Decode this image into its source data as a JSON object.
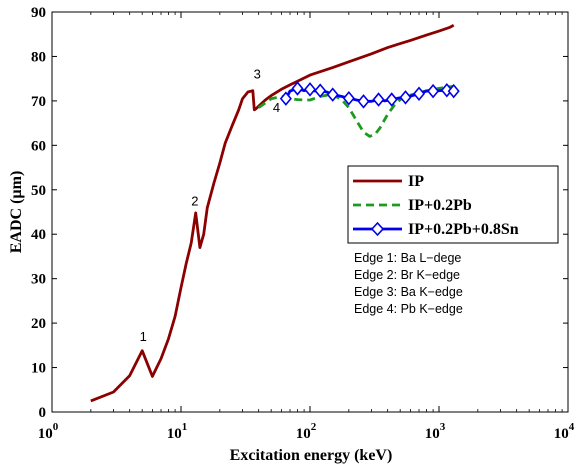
{
  "chart_data": {
    "type": "line",
    "xlabel": "Excitation energy (keV)",
    "ylabel": "EADC (µm)",
    "xscale": "log",
    "xlim": [
      1,
      10000
    ],
    "ylim": [
      0,
      90
    ],
    "x_ticks": [
      1,
      10,
      100,
      1000,
      10000
    ],
    "x_tick_labels": [
      {
        "base": "10",
        "exp": "0"
      },
      {
        "base": "10",
        "exp": "1"
      },
      {
        "base": "10",
        "exp": "2"
      },
      {
        "base": "10",
        "exp": "3"
      },
      {
        "base": "10",
        "exp": "4"
      }
    ],
    "y_ticks": [
      0,
      10,
      20,
      30,
      40,
      50,
      60,
      70,
      80,
      90
    ],
    "y_tick_labels": [
      "0",
      "10",
      "20",
      "30",
      "40",
      "50",
      "60",
      "70",
      "80",
      "90"
    ],
    "grid": false,
    "legend_placement": "center-right",
    "series": [
      {
        "name": "IP",
        "color": "#8b0000",
        "style": "solid",
        "marker": "none",
        "x": [
          2,
          3,
          4,
          5,
          6,
          7,
          8,
          9,
          10,
          11,
          12,
          13,
          14,
          15,
          16,
          18,
          20,
          22,
          25,
          28,
          30,
          33,
          36,
          37,
          38,
          40,
          45,
          50,
          60,
          70,
          80,
          100,
          150,
          200,
          300,
          400,
          500,
          600,
          800,
          1000,
          1200,
          1300
        ],
        "y": [
          2.5,
          4.5,
          8.2,
          13.8,
          8.0,
          12.0,
          16.5,
          21.5,
          28.0,
          33.5,
          38.0,
          44.8,
          37.0,
          40.0,
          46.0,
          51.5,
          56.0,
          60.5,
          64.5,
          68.0,
          70.5,
          72.0,
          72.3,
          68.0,
          68.2,
          68.8,
          70.2,
          71.2,
          72.6,
          73.6,
          74.4,
          75.8,
          77.5,
          78.8,
          80.6,
          82.0,
          82.9,
          83.6,
          84.8,
          85.7,
          86.5,
          87.0
        ]
      },
      {
        "name": "IP+0.2Pb",
        "color": "#1e9a1e",
        "style": "dashed",
        "marker": "none",
        "x": [
          40,
          50,
          60,
          70,
          80,
          90,
          100,
          120,
          150,
          180,
          200,
          230,
          260,
          290,
          320,
          350,
          400,
          450,
          500,
          600,
          700,
          800,
          1000,
          1300
        ],
        "y": [
          68.5,
          70.5,
          71.0,
          70.5,
          70.3,
          70.2,
          70.2,
          71.0,
          71.5,
          70.0,
          68.5,
          65.5,
          63.0,
          62.0,
          62.5,
          64.0,
          67.0,
          69.0,
          70.3,
          71.3,
          71.8,
          72.3,
          72.8,
          73.3
        ]
      },
      {
        "name": "IP+0.2Pb+0.8Sn",
        "color": "#0000ee",
        "style": "solid",
        "marker": "diamond",
        "x": [
          65,
          70,
          80,
          90,
          100,
          110,
          120,
          135,
          150,
          170,
          200,
          230,
          260,
          300,
          340,
          380,
          430,
          480,
          550,
          620,
          700,
          800,
          900,
          1000,
          1150,
          1300
        ],
        "y": [
          70.5,
          72.2,
          72.8,
          72.3,
          72.6,
          72.2,
          72.3,
          72.0,
          71.4,
          71.1,
          70.6,
          70.2,
          69.9,
          69.9,
          70.3,
          70.0,
          70.3,
          70.6,
          70.8,
          71.2,
          71.6,
          72.2,
          72.2,
          72.3,
          72.4,
          72.2
        ]
      }
    ],
    "marker_points_x": [
      65,
      80,
      100,
      120,
      150,
      200,
      260,
      340,
      430,
      550,
      700,
      900,
      1150,
      1300
    ],
    "annotations": [
      {
        "text": "1",
        "x": 5.1,
        "y": 16.0
      },
      {
        "text": "2",
        "x": 12.8,
        "y": 46.5
      },
      {
        "text": "3",
        "x": 39,
        "y": 75.0
      },
      {
        "text": "4",
        "x": 55,
        "y": 67.5
      }
    ],
    "notes": [
      "Edge 1: Ba L−dege",
      "Edge 2: Br K−edge",
      "Edge 3: Ba K−edge",
      "Edge 4: Pb K−edge"
    ]
  }
}
